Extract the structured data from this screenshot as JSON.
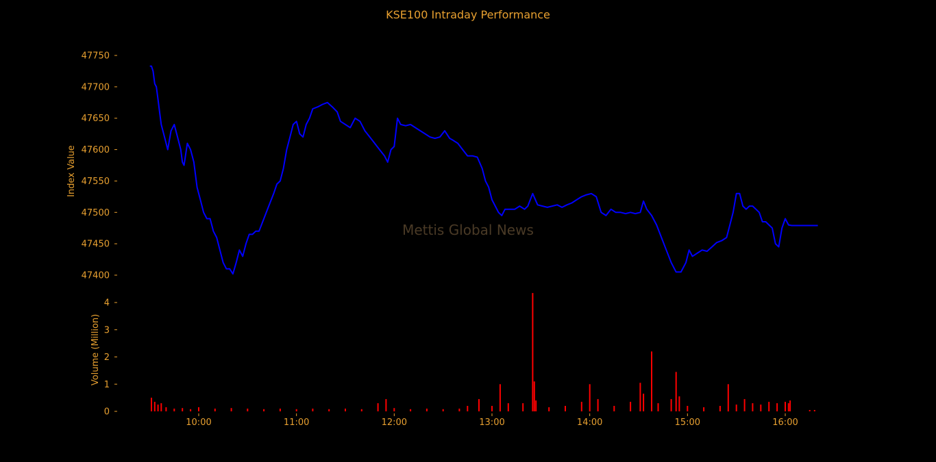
{
  "chart_data": {
    "title": "KSE100 Intraday Performance",
    "watermark": "Mettis Global News",
    "colors": {
      "background": "#000000",
      "text": "#e8a030",
      "index_line": "#0000ff",
      "volume_bars": "#ff0000",
      "watermark": "#4a3a26"
    },
    "x_axis": {
      "type": "time",
      "range": [
        "09:30",
        "16:20"
      ],
      "ticks": [
        "10:00",
        "11:00",
        "12:00",
        "13:00",
        "14:00",
        "15:00",
        "16:00"
      ]
    },
    "index_panel": {
      "type": "line",
      "ylabel": "Index Value",
      "ylim": [
        47395,
        47760
      ],
      "yticks": [
        47400,
        47450,
        47500,
        47550,
        47600,
        47650,
        47700,
        47750
      ],
      "series": [
        {
          "points": [
            [
              "09:30",
              47733
            ],
            [
              "09:31",
              47733
            ],
            [
              "09:32",
              47725
            ],
            [
              "09:33",
              47705
            ],
            [
              "09:34",
              47700
            ],
            [
              "09:35",
              47680
            ],
            [
              "09:36",
              47660
            ],
            [
              "09:37",
              47640
            ],
            [
              "09:39",
              47620
            ],
            [
              "09:41",
              47600
            ],
            [
              "09:43",
              47630
            ],
            [
              "09:45",
              47640
            ],
            [
              "09:47",
              47620
            ],
            [
              "09:49",
              47600
            ],
            [
              "09:50",
              47580
            ],
            [
              "09:51",
              47575
            ],
            [
              "09:53",
              47610
            ],
            [
              "09:55",
              47600
            ],
            [
              "09:57",
              47580
            ],
            [
              "09:59",
              47540
            ],
            [
              "10:01",
              47520
            ],
            [
              "10:03",
              47500
            ],
            [
              "10:05",
              47490
            ],
            [
              "10:07",
              47490
            ],
            [
              "10:09",
              47470
            ],
            [
              "10:11",
              47460
            ],
            [
              "10:13",
              47440
            ],
            [
              "10:15",
              47420
            ],
            [
              "10:17",
              47410
            ],
            [
              "10:19",
              47410
            ],
            [
              "10:21",
              47402
            ],
            [
              "10:23",
              47420
            ],
            [
              "10:25",
              47440
            ],
            [
              "10:27",
              47430
            ],
            [
              "10:29",
              47450
            ],
            [
              "10:31",
              47465
            ],
            [
              "10:33",
              47465
            ],
            [
              "10:35",
              47470
            ],
            [
              "10:37",
              47470
            ],
            [
              "10:40",
              47490
            ],
            [
              "10:43",
              47510
            ],
            [
              "10:46",
              47530
            ],
            [
              "10:48",
              47545
            ],
            [
              "10:50",
              47550
            ],
            [
              "10:52",
              47570
            ],
            [
              "10:54",
              47600
            ],
            [
              "10:56",
              47620
            ],
            [
              "10:58",
              47640
            ],
            [
              "11:00",
              47645
            ],
            [
              "11:02",
              47625
            ],
            [
              "11:04",
              47620
            ],
            [
              "11:06",
              47640
            ],
            [
              "11:08",
              47650
            ],
            [
              "11:10",
              47665
            ],
            [
              "11:13",
              47668
            ],
            [
              "11:16",
              47672
            ],
            [
              "11:19",
              47675
            ],
            [
              "11:22",
              47668
            ],
            [
              "11:25",
              47660
            ],
            [
              "11:27",
              47645
            ],
            [
              "11:30",
              47640
            ],
            [
              "11:33",
              47635
            ],
            [
              "11:36",
              47650
            ],
            [
              "11:39",
              47645
            ],
            [
              "11:42",
              47630
            ],
            [
              "11:45",
              47620
            ],
            [
              "11:48",
              47610
            ],
            [
              "11:51",
              47600
            ],
            [
              "11:54",
              47590
            ],
            [
              "11:56",
              47580
            ],
            [
              "11:58",
              47600
            ],
            [
              "12:00",
              47605
            ],
            [
              "12:02",
              47650
            ],
            [
              "12:04",
              47640
            ],
            [
              "12:07",
              47638
            ],
            [
              "12:10",
              47640
            ],
            [
              "12:13",
              47635
            ],
            [
              "12:16",
              47630
            ],
            [
              "12:19",
              47625
            ],
            [
              "12:22",
              47620
            ],
            [
              "12:25",
              47618
            ],
            [
              "12:28",
              47620
            ],
            [
              "12:31",
              47630
            ],
            [
              "12:34",
              47618
            ],
            [
              "12:36",
              47615
            ],
            [
              "12:39",
              47610
            ],
            [
              "12:42",
              47600
            ],
            [
              "12:45",
              47590
            ],
            [
              "12:48",
              47590
            ],
            [
              "12:51",
              47588
            ],
            [
              "12:54",
              47570
            ],
            [
              "12:56",
              47550
            ],
            [
              "12:58",
              47540
            ],
            [
              "13:00",
              47520
            ],
            [
              "13:02",
              47510
            ],
            [
              "13:04",
              47500
            ],
            [
              "13:06",
              47495
            ],
            [
              "13:08",
              47505
            ],
            [
              "13:11",
              47505
            ],
            [
              "13:14",
              47505
            ],
            [
              "13:17",
              47510
            ],
            [
              "13:20",
              47505
            ],
            [
              "13:22",
              47510
            ],
            [
              "13:25",
              47530
            ],
            [
              "13:28",
              47512
            ],
            [
              "13:31",
              47510
            ],
            [
              "13:34",
              47508
            ],
            [
              "13:37",
              47510
            ],
            [
              "13:40",
              47512
            ],
            [
              "13:43",
              47508
            ],
            [
              "13:46",
              47512
            ],
            [
              "13:49",
              47515
            ],
            [
              "13:52",
              47520
            ],
            [
              "13:55",
              47525
            ],
            [
              "13:58",
              47528
            ],
            [
              "14:01",
              47530
            ],
            [
              "14:04",
              47525
            ],
            [
              "14:07",
              47500
            ],
            [
              "14:10",
              47495
            ],
            [
              "14:13",
              47505
            ],
            [
              "14:16",
              47500
            ],
            [
              "14:19",
              47500
            ],
            [
              "14:22",
              47498
            ],
            [
              "14:25",
              47500
            ],
            [
              "14:28",
              47498
            ],
            [
              "14:31",
              47500
            ],
            [
              "14:33",
              47518
            ],
            [
              "14:35",
              47505
            ],
            [
              "14:38",
              47495
            ],
            [
              "14:41",
              47480
            ],
            [
              "14:44",
              47460
            ],
            [
              "14:47",
              47440
            ],
            [
              "14:50",
              47420
            ],
            [
              "14:53",
              47405
            ],
            [
              "14:56",
              47405
            ],
            [
              "14:59",
              47420
            ],
            [
              "15:01",
              47440
            ],
            [
              "15:03",
              47430
            ],
            [
              "15:06",
              47435
            ],
            [
              "15:09",
              47440
            ],
            [
              "15:12",
              47438
            ],
            [
              "15:15",
              47445
            ],
            [
              "15:18",
              47452
            ],
            [
              "15:21",
              47455
            ],
            [
              "15:24",
              47460
            ],
            [
              "15:26",
              47480
            ],
            [
              "15:28",
              47500
            ],
            [
              "15:30",
              47530
            ],
            [
              "15:32",
              47530
            ],
            [
              "15:34",
              47510
            ],
            [
              "15:36",
              47505
            ],
            [
              "15:38",
              47510
            ],
            [
              "15:40",
              47510
            ],
            [
              "15:42",
              47505
            ],
            [
              "15:44",
              47500
            ],
            [
              "15:46",
              47485
            ],
            [
              "15:48",
              47485
            ],
            [
              "15:50",
              47480
            ],
            [
              "15:52",
              47475
            ],
            [
              "15:54",
              47450
            ],
            [
              "15:56",
              47445
            ],
            [
              "15:58",
              47475
            ],
            [
              "16:00",
              47490
            ],
            [
              "16:02",
              47480
            ],
            [
              "16:04",
              47479
            ],
            [
              "16:20",
              47479
            ]
          ]
        }
      ]
    },
    "volume_panel": {
      "type": "bar",
      "ylabel": "Volume (Million)",
      "ylim": [
        0,
        4.4
      ],
      "yticks": [
        0,
        1,
        2,
        3,
        4
      ],
      "series": [
        {
          "points": [
            [
              "09:31",
              0.5
            ],
            [
              "09:33",
              0.35
            ],
            [
              "09:35",
              0.25
            ],
            [
              "09:37",
              0.3
            ],
            [
              "09:40",
              0.15
            ],
            [
              "09:45",
              0.1
            ],
            [
              "09:50",
              0.12
            ],
            [
              "09:55",
              0.08
            ],
            [
              "10:00",
              0.15
            ],
            [
              "10:10",
              0.1
            ],
            [
              "10:20",
              0.12
            ],
            [
              "10:30",
              0.1
            ],
            [
              "10:40",
              0.08
            ],
            [
              "10:50",
              0.1
            ],
            [
              "11:00",
              0.08
            ],
            [
              "11:10",
              0.1
            ],
            [
              "11:20",
              0.08
            ],
            [
              "11:30",
              0.1
            ],
            [
              "11:40",
              0.08
            ],
            [
              "11:50",
              0.3
            ],
            [
              "11:55",
              0.45
            ],
            [
              "12:00",
              0.12
            ],
            [
              "12:10",
              0.08
            ],
            [
              "12:20",
              0.1
            ],
            [
              "12:30",
              0.08
            ],
            [
              "12:40",
              0.1
            ],
            [
              "12:45",
              0.2
            ],
            [
              "12:52",
              0.45
            ],
            [
              "13:00",
              0.2
            ],
            [
              "13:05",
              1.0
            ],
            [
              "13:10",
              0.3
            ],
            [
              "13:19",
              0.3
            ],
            [
              "13:25",
              4.35
            ],
            [
              "13:26",
              1.1
            ],
            [
              "13:27",
              0.4
            ],
            [
              "13:35",
              0.15
            ],
            [
              "13:45",
              0.2
            ],
            [
              "13:55",
              0.35
            ],
            [
              "14:00",
              1.0
            ],
            [
              "14:05",
              0.45
            ],
            [
              "14:15",
              0.2
            ],
            [
              "14:25",
              0.35
            ],
            [
              "14:31",
              1.05
            ],
            [
              "14:33",
              0.65
            ],
            [
              "14:38",
              2.2
            ],
            [
              "14:42",
              0.3
            ],
            [
              "14:50",
              0.45
            ],
            [
              "14:53",
              1.45
            ],
            [
              "14:55",
              0.55
            ],
            [
              "15:00",
              0.2
            ],
            [
              "15:10",
              0.15
            ],
            [
              "15:20",
              0.2
            ],
            [
              "15:25",
              1.0
            ],
            [
              "15:30",
              0.25
            ],
            [
              "15:35",
              0.45
            ],
            [
              "15:40",
              0.3
            ],
            [
              "15:45",
              0.25
            ],
            [
              "15:50",
              0.35
            ],
            [
              "15:55",
              0.3
            ],
            [
              "16:00",
              0.35
            ],
            [
              "16:02",
              0.3
            ],
            [
              "16:03",
              0.4
            ],
            [
              "16:15",
              0.05
            ],
            [
              "16:18",
              0.05
            ]
          ]
        }
      ]
    }
  }
}
